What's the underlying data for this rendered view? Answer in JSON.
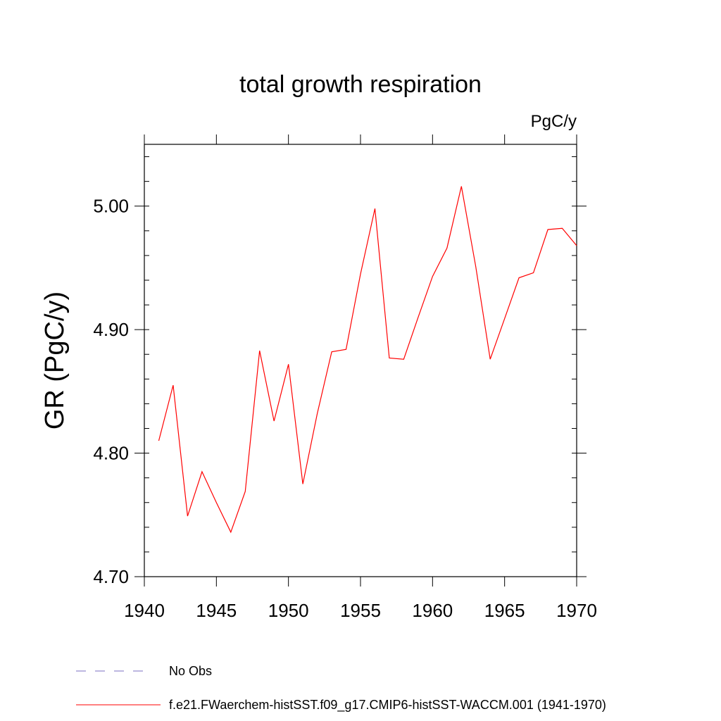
{
  "chart_data": {
    "type": "line",
    "title": "total growth respiration",
    "units": "PgC/y",
    "ylabel": "GR  (PgC/y)",
    "xlabel": "",
    "xlim": [
      1940,
      1970
    ],
    "ylim": [
      4.7,
      5.05
    ],
    "x_ticks": [
      1940,
      1945,
      1950,
      1955,
      1960,
      1965,
      1970
    ],
    "x_tick_labels": [
      "1940",
      "1945",
      "1950",
      "1955",
      "1960",
      "1965",
      "1970"
    ],
    "y_ticks": [
      4.7,
      4.8,
      4.9,
      5.0
    ],
    "y_tick_labels": [
      "4.70",
      "4.80",
      "4.90",
      "5.00"
    ],
    "grid": false,
    "legend_position": "bottom",
    "series": [
      {
        "name": "f.e21.FWaerchem-histSST.f09_g17.CMIP6-histSST-WACCM.001 (1941-1970)",
        "color": "#ff0000",
        "style": "solid",
        "x": [
          1941,
          1942,
          1943,
          1944,
          1945,
          1946,
          1947,
          1948,
          1949,
          1950,
          1951,
          1952,
          1953,
          1954,
          1955,
          1956,
          1957,
          1958,
          1959,
          1960,
          1961,
          1962,
          1963,
          1964,
          1965,
          1966,
          1967,
          1968,
          1969,
          1970
        ],
        "values": [
          4.81,
          4.855,
          4.749,
          4.785,
          4.76,
          4.736,
          4.769,
          4.883,
          4.826,
          4.872,
          4.775,
          4.832,
          4.882,
          4.884,
          4.945,
          4.998,
          4.877,
          4.876,
          4.91,
          4.943,
          4.966,
          5.016,
          4.951,
          4.876,
          4.909,
          4.942,
          4.946,
          4.981,
          4.982,
          4.968
        ]
      }
    ],
    "legend": [
      {
        "label": "No Obs",
        "color": "#7b6fc0",
        "style": "dashed"
      },
      {
        "label": "f.e21.FWaerchem-histSST.f09_g17.CMIP6-histSST-WACCM.001 (1941-1970)",
        "color": "#ff0000",
        "style": "solid"
      }
    ]
  }
}
